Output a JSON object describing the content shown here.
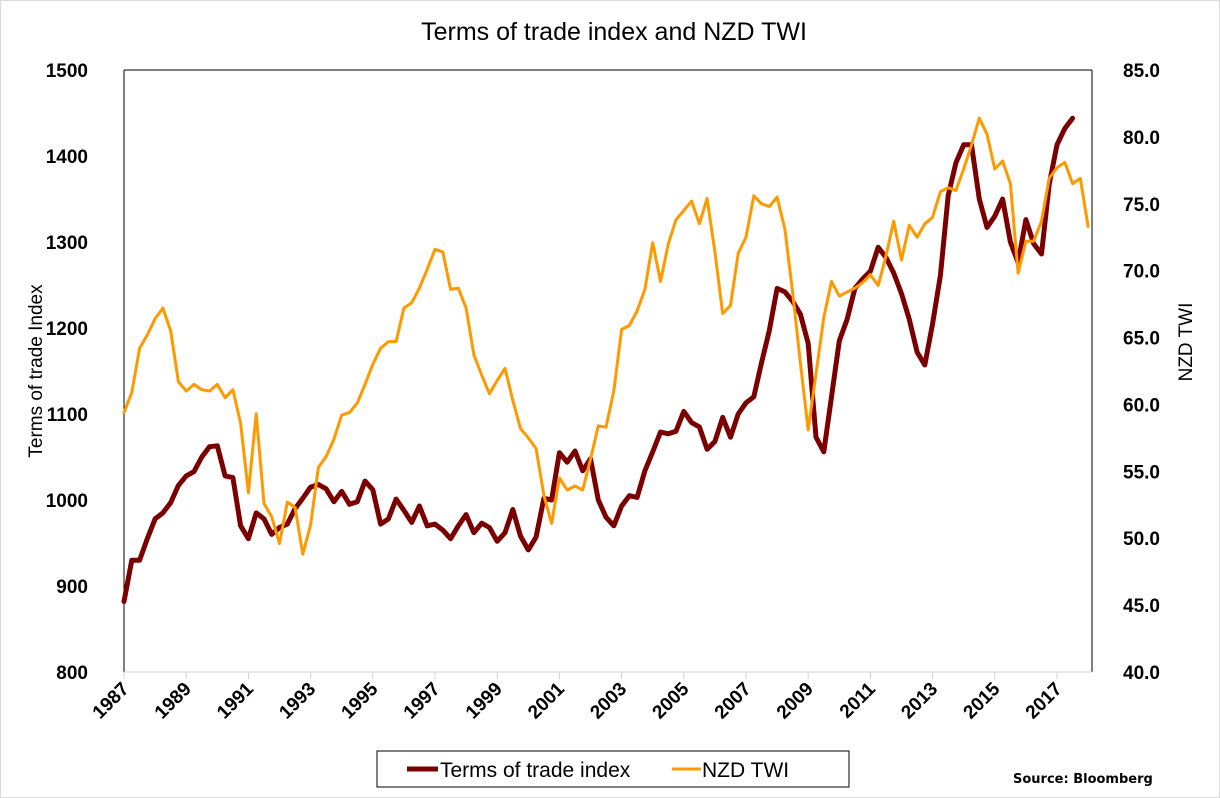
{
  "chart_data": {
    "type": "line",
    "title": "Terms of trade index and NZD TWI",
    "xlabel": "",
    "ylabel": "Terms of trade Index",
    "y2label": "NZD TWI",
    "source": "Source: Bloomberg",
    "x_start": 1987.0,
    "x_step": 0.25,
    "xlim": [
      1987,
      2018
    ],
    "x_ticks": [
      "1987",
      "1989",
      "1991",
      "1993",
      "1995",
      "1997",
      "1999",
      "2001",
      "2003",
      "2005",
      "2007",
      "2009",
      "2011",
      "2013",
      "2015",
      "2017"
    ],
    "ylim": [
      800,
      1500
    ],
    "y_ticks": [
      "800",
      "900",
      "1000",
      "1100",
      "1200",
      "1300",
      "1400",
      "1500"
    ],
    "y2lim": [
      40,
      85
    ],
    "y2_ticks": [
      "40.0",
      "45.0",
      "50.0",
      "55.0",
      "60.0",
      "65.0",
      "70.0",
      "75.0",
      "80.0",
      "85.0"
    ],
    "grid": false,
    "legend_position": "bottom-center",
    "series": [
      {
        "name": "Terms of trade index",
        "axis": "left",
        "color": "#7b0000",
        "values": [
          882,
          930,
          930,
          955,
          978,
          985,
          997,
          1017,
          1028,
          1033,
          1050,
          1062,
          1063,
          1028,
          1026,
          970,
          955,
          985,
          978,
          960,
          968,
          972,
          990,
          1002,
          1015,
          1018,
          1013,
          998,
          1010,
          995,
          998,
          1022,
          1012,
          972,
          978,
          1001,
          988,
          974,
          993,
          970,
          972,
          965,
          955,
          970,
          983,
          962,
          973,
          968,
          952,
          962,
          989,
          958,
          942,
          957,
          1002,
          1000,
          1055,
          1044,
          1057,
          1034,
          1048,
          1000,
          980,
          970,
          993,
          1005,
          1003,
          1034,
          1056,
          1079,
          1077,
          1080,
          1103,
          1090,
          1085,
          1059,
          1068,
          1096,
          1073,
          1100,
          1113,
          1120,
          1160,
          1197,
          1246,
          1242,
          1231,
          1216,
          1182,
          1073,
          1056,
          1120,
          1185,
          1210,
          1246,
          1257,
          1266,
          1294,
          1282,
          1264,
          1240,
          1210,
          1172,
          1157,
          1205,
          1261,
          1354,
          1392,
          1413,
          1413,
          1350,
          1317,
          1330,
          1350,
          1300,
          1276,
          1326,
          1298,
          1286,
          1367,
          1413,
          1432,
          1444
        ]
      },
      {
        "name": "NZD TWI",
        "axis": "right",
        "color": "#ff9900",
        "values": [
          59.4,
          60.9,
          64.2,
          65.2,
          66.4,
          67.2,
          65.5,
          61.7,
          61.0,
          61.5,
          61.1,
          61.0,
          61.5,
          60.5,
          61.1,
          58.6,
          53.4,
          59.3,
          52.6,
          51.6,
          49.6,
          52.7,
          52.3,
          48.8,
          51.0,
          55.3,
          56.1,
          57.4,
          59.2,
          59.4,
          60.1,
          61.5,
          63.0,
          64.2,
          64.7,
          64.7,
          67.2,
          67.6,
          68.7,
          70.1,
          71.6,
          71.4,
          68.6,
          68.7,
          67.2,
          63.7,
          62.2,
          60.8,
          61.8,
          62.7,
          60.3,
          58.2,
          57.5,
          56.7,
          53.2,
          51.1,
          54.5,
          53.6,
          53.9,
          53.6,
          55.9,
          58.4,
          58.3,
          61.0,
          65.6,
          65.9,
          67.0,
          68.6,
          72.1,
          69.2,
          72.0,
          73.8,
          74.5,
          75.2,
          73.5,
          75.4,
          71.4,
          66.8,
          67.4,
          71.3,
          72.5,
          75.6,
          75.0,
          74.8,
          75.5,
          73.1,
          68.4,
          63.1,
          58.1,
          62.3,
          66.5,
          69.2,
          68.1,
          68.4,
          68.7,
          69.1,
          69.7,
          68.9,
          71.1,
          73.7,
          70.8,
          73.4,
          72.5,
          73.5,
          74.0,
          75.9,
          76.2,
          76.0,
          77.6,
          79.4,
          81.4,
          80.2,
          77.6,
          78.2,
          76.5,
          69.8,
          72.2,
          72.2,
          73.7,
          76.9,
          77.7,
          78.1,
          76.5,
          76.9,
          73.3
        ]
      }
    ]
  }
}
